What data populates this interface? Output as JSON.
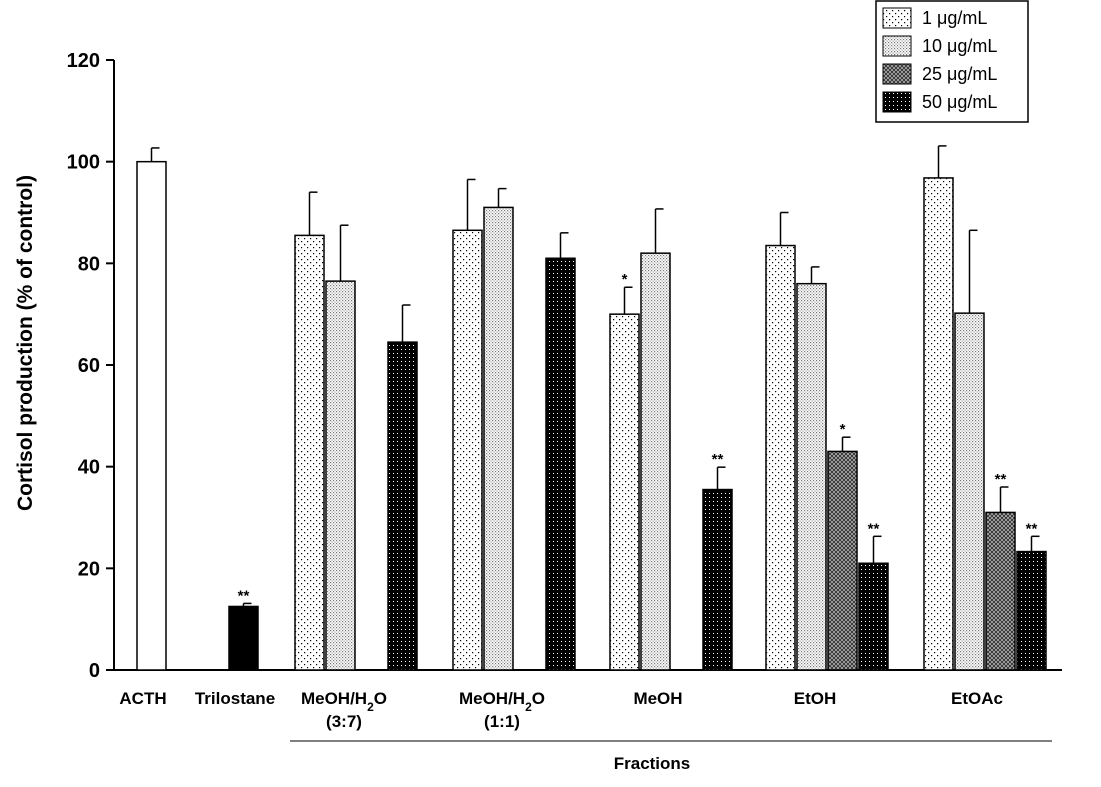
{
  "chart_data": {
    "type": "bar",
    "ylabel": "Cortisol production (% of control)",
    "xlabel": "Fractions",
    "ylim": [
      0,
      120
    ],
    "yticks": [
      0,
      20,
      40,
      60,
      80,
      100,
      120
    ],
    "legend_position": "top-right",
    "grid": false,
    "series": [
      {
        "name": "1 μg/mL",
        "pattern": "sparse-dots"
      },
      {
        "name": "10 μg/mL",
        "pattern": "dense-dots"
      },
      {
        "name": "25 μg/mL",
        "pattern": "crosshatch"
      },
      {
        "name": "50 μg/mL",
        "pattern": "dark-dots"
      }
    ],
    "groups": [
      {
        "label": "ACTH",
        "label2": "",
        "bars": [
          {
            "series": "control",
            "value": 100,
            "error": 2.7,
            "sig": ""
          }
        ]
      },
      {
        "label": "Trilostane",
        "label2": "",
        "bars": [
          {
            "series": "control-solid",
            "value": 12.5,
            "error": 0.6,
            "sig": "**"
          }
        ]
      },
      {
        "label": "MeOH/H",
        "sub": "2",
        "labelTail": "O",
        "label2": "(3:7)",
        "bars": [
          {
            "series": 0,
            "value": 85.5,
            "error": 8.5,
            "sig": ""
          },
          {
            "series": 1,
            "value": 76.5,
            "error": 11,
            "sig": ""
          },
          {
            "series": 3,
            "value": 64.5,
            "error": 7.3,
            "sig": ""
          }
        ]
      },
      {
        "label": "MeOH/H",
        "sub": "2",
        "labelTail": "O",
        "label2": "(1:1)",
        "bars": [
          {
            "series": 0,
            "value": 86.5,
            "error": 10,
            "sig": ""
          },
          {
            "series": 1,
            "value": 91,
            "error": 3.7,
            "sig": ""
          },
          {
            "series": 3,
            "value": 81,
            "error": 5,
            "sig": ""
          }
        ]
      },
      {
        "label": "MeOH",
        "label2": "",
        "bars": [
          {
            "series": 0,
            "value": 70,
            "error": 5.3,
            "sig": "*"
          },
          {
            "series": 1,
            "value": 82,
            "error": 8.7,
            "sig": ""
          },
          {
            "series": 3,
            "value": 35.5,
            "error": 4.4,
            "sig": "**"
          }
        ]
      },
      {
        "label": "EtOH",
        "label2": "",
        "bars": [
          {
            "series": 0,
            "value": 83.5,
            "error": 6.5,
            "sig": ""
          },
          {
            "series": 1,
            "value": 76,
            "error": 3.3,
            "sig": ""
          },
          {
            "series": 2,
            "value": 43,
            "error": 2.8,
            "sig": "*"
          },
          {
            "series": 3,
            "value": 21,
            "error": 5.3,
            "sig": "**"
          }
        ]
      },
      {
        "label": "EtOAc",
        "label2": "",
        "bars": [
          {
            "series": 0,
            "value": 96.8,
            "error": 6.3,
            "sig": ""
          },
          {
            "series": 1,
            "value": 70.2,
            "error": 16.3,
            "sig": ""
          },
          {
            "series": 2,
            "value": 31,
            "error": 5,
            "sig": "**"
          },
          {
            "series": 3,
            "value": 23.3,
            "error": 3,
            "sig": "**"
          }
        ]
      }
    ]
  }
}
